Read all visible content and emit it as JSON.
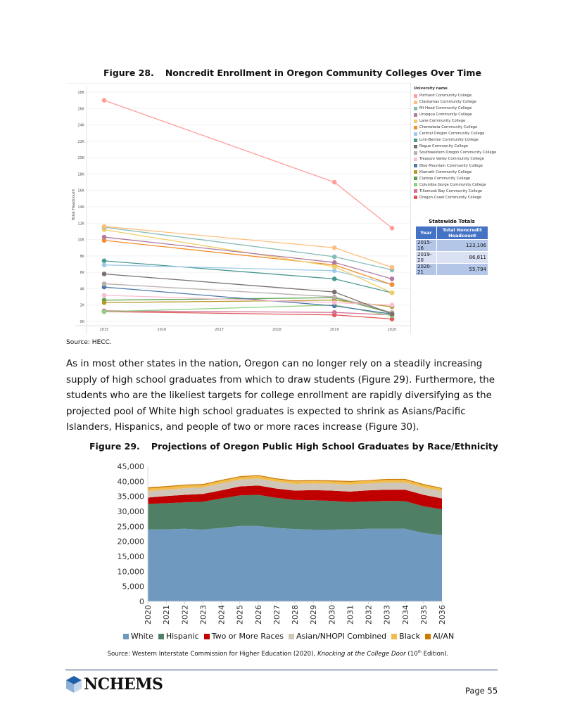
{
  "figure28": {
    "number": "Figure 28.",
    "title": "Noncredit Enrollment in Oregon Community Colleges Over Time",
    "source": "Source: HECC."
  },
  "legend1_title": "University name",
  "statewide_totals": {
    "title": "Statewide Totals",
    "headers": [
      "Year",
      "Total Noncredit Headcount"
    ],
    "rows": [
      {
        "year": "2015-16",
        "value": "123,106"
      },
      {
        "year": "2019-20",
        "value": "86,811"
      },
      {
        "year": "2020-21",
        "value": "55,794"
      }
    ]
  },
  "paragraph": "As in most other states in the nation, Oregon can no longer rely on a steadily increasing supply of high school graduates from which to draw students (Figure 29). Furthermore, the students who are the likeliest targets for college enrollment are rapidly diversifying as the projected pool of White high school graduates is expected to shrink as Asians/Pacific Islanders, Hispanics, and people of two or more races increase (Figure 30).",
  "figure29": {
    "number": "Figure 29.",
    "title": "Projections of Oregon Public High School Graduates by Race/Ethnicity",
    "source_prefix": "Source: Western Interstate Commission for Higher Education (2020), ",
    "source_italic": "Knocking at the College Door",
    "source_edition": " (10",
    "source_sup": "th",
    "source_suffix": " Edition)."
  },
  "footer": {
    "logo_text": "NCHEMS",
    "page": "Page 55"
  },
  "chart_data": [
    {
      "type": "line",
      "title": "Noncredit Enrollment in Oregon Community Colleges Over Time",
      "xlabel": "",
      "ylabel": "Total Headcount",
      "x_ticks": [
        "2015",
        "2016",
        "2017",
        "2018",
        "2019",
        "2020"
      ],
      "xlim": [
        2015,
        2020
      ],
      "y_ticks": [
        "0K",
        "2K",
        "4K",
        "6K",
        "8K",
        "10K",
        "12K",
        "14K",
        "16K",
        "18K",
        "20K",
        "22K",
        "24K",
        "26K",
        "28K"
      ],
      "ylim": [
        0,
        28000
      ],
      "grid": true,
      "legend": "right",
      "x": [
        2015,
        2019,
        2020
      ],
      "series": [
        {
          "name": "Portland Community College",
          "color": "#ff9d9a",
          "values": [
            27000,
            17000,
            11400
          ]
        },
        {
          "name": "Clackamas Community College",
          "color": "#ffbe7d",
          "values": [
            11600,
            9000,
            6600
          ]
        },
        {
          "name": "Mt Hood Community College",
          "color": "#86bcb6",
          "values": [
            11500,
            7900,
            6300
          ]
        },
        {
          "name": "Umpqua Community College",
          "color": "#b07aa1",
          "values": [
            10300,
            7200,
            5200
          ]
        },
        {
          "name": "Lane Community College",
          "color": "#f1ce63",
          "values": [
            11200,
            6700,
            3500
          ]
        },
        {
          "name": "Chemeketa Community College",
          "color": "#f28e2b",
          "values": [
            9900,
            6900,
            4500
          ]
        },
        {
          "name": "Central Oregon Community College",
          "color": "#a0cbe8",
          "values": [
            6900,
            6200,
            4500
          ]
        },
        {
          "name": "Linn-Benton Community College",
          "color": "#499894",
          "values": [
            7400,
            5200,
            3500
          ]
        },
        {
          "name": "Rogue Community College",
          "color": "#79706e",
          "values": [
            5800,
            3600,
            900
          ]
        },
        {
          "name": "Southwestern Oregon Community College",
          "color": "#bab0ac",
          "values": [
            4600,
            3000,
            1100
          ]
        },
        {
          "name": "Treasure Valley Community College",
          "color": "#fabfd2",
          "values": [
            3200,
            2300,
            2000
          ]
        },
        {
          "name": "Blue Mountain Community College",
          "color": "#4e79a7",
          "values": [
            4200,
            1900,
            900
          ]
        },
        {
          "name": "Klamath Community College",
          "color": "#b6992d",
          "values": [
            2300,
            2600,
            1800
          ]
        },
        {
          "name": "Clatsop Community College",
          "color": "#59a14f",
          "values": [
            2600,
            2900,
            1000
          ]
        },
        {
          "name": "Columbia Gorge Community College",
          "color": "#8cd17d",
          "values": [
            1200,
            2000,
            700
          ]
        },
        {
          "name": "Tillamook Bay Community College",
          "color": "#d37295",
          "values": [
            1300,
            1100,
            800
          ]
        },
        {
          "name": "Oregon Coast Community College",
          "color": "#e15759",
          "values": [
            1200,
            800,
            300
          ]
        }
      ]
    },
    {
      "type": "area",
      "stacked": true,
      "title": "Projections of Oregon Public High School Graduates by Race/Ethnicity",
      "xlabel": "",
      "ylabel": "",
      "categories": [
        "2020",
        "2021",
        "2022",
        "2023",
        "2024",
        "2025",
        "2026",
        "2027",
        "2028",
        "2029",
        "2030",
        "2031",
        "2032",
        "2033",
        "2034",
        "2035",
        "2036"
      ],
      "y_ticks": [
        "0",
        "5,000",
        "10,000",
        "15,000",
        "20,000",
        "25,000",
        "30,000",
        "35,000",
        "40,000",
        "45,000"
      ],
      "ylim": [
        0,
        45000
      ],
      "grid": false,
      "legend": "bottom",
      "series": [
        {
          "name": "White",
          "color": "#7099c0",
          "values": [
            24000,
            24000,
            24200,
            23900,
            24500,
            25100,
            25100,
            24500,
            24100,
            23900,
            23900,
            24000,
            24200,
            24200,
            24200,
            22800,
            22100
          ]
        },
        {
          "name": "Hispanic",
          "color": "#4f7f65",
          "values": [
            8500,
            8700,
            8800,
            9300,
            9800,
            10200,
            10400,
            10000,
            9700,
            9800,
            9600,
            9100,
            9100,
            9300,
            9200,
            8900,
            8600
          ]
        },
        {
          "name": "Two or More Races",
          "color": "#c00000",
          "values": [
            2100,
            2400,
            2500,
            2600,
            2700,
            3000,
            3100,
            3100,
            3100,
            3400,
            3400,
            3500,
            3700,
            3700,
            3800,
            3800,
            3600
          ]
        },
        {
          "name": "Asian/NHOPI Combined",
          "color": "#cfc6b8",
          "values": [
            2100,
            2100,
            2200,
            2200,
            2300,
            2300,
            2300,
            2300,
            2200,
            2200,
            2300,
            2300,
            2300,
            2400,
            2400,
            2400,
            2400
          ]
        },
        {
          "name": "Black",
          "color": "#f2bc4a",
          "values": [
            900,
            900,
            900,
            800,
            900,
            800,
            900,
            800,
            900,
            800,
            800,
            900,
            900,
            900,
            900,
            900,
            800
          ]
        },
        {
          "name": "AI/AN",
          "color": "#cc7a00",
          "values": [
            400,
            300,
            300,
            300,
            300,
            300,
            300,
            300,
            300,
            300,
            300,
            300,
            200,
            300,
            300,
            300,
            300
          ]
        }
      ]
    }
  ]
}
